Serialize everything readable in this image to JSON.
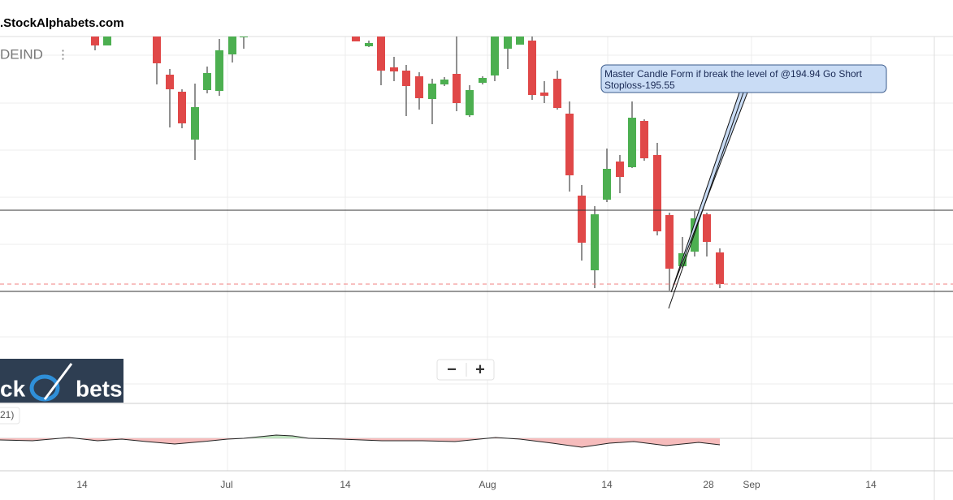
{
  "watermark": ".StockAlphabets.com",
  "symbol": "DEIND",
  "annotation": {
    "lines": [
      "Master Candle Form if break the level of @194.94 Go Short",
      "Stoploss-195.55"
    ]
  },
  "logo": {
    "left": "ck",
    "right": "bets"
  },
  "indicator": {
    "label": "21)"
  },
  "zoom": {
    "out": "−",
    "in": "+"
  },
  "x_axis": {
    "labels": [
      "14",
      "Jul",
      "14",
      "Aug",
      "14",
      "28",
      "Sep",
      "14"
    ]
  }
}
